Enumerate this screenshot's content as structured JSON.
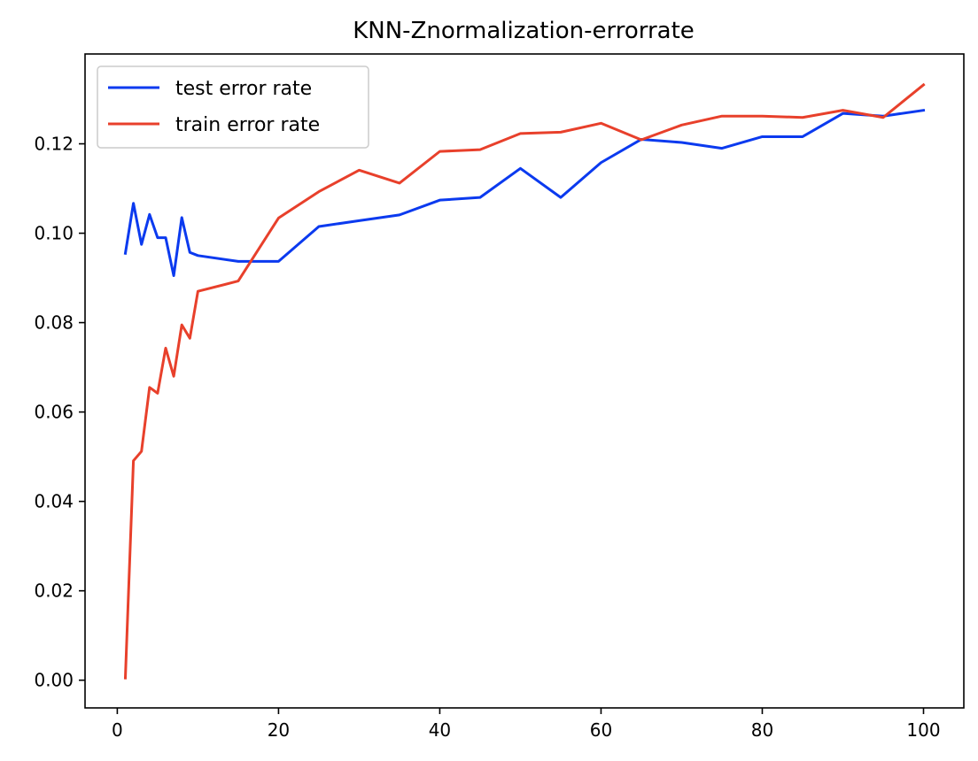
{
  "chart_data": {
    "type": "line",
    "title": "KNN-Znormalization-errorrate",
    "xlabel": "",
    "ylabel": "",
    "xlim": [
      -4,
      105
    ],
    "ylim": [
      -0.0062,
      0.1401
    ],
    "xticks": [
      0,
      20,
      40,
      60,
      80,
      100
    ],
    "xtick_labels": [
      "0",
      "20",
      "40",
      "60",
      "80",
      "100"
    ],
    "yticks": [
      0.0,
      0.02,
      0.04,
      0.06,
      0.08,
      0.1,
      0.12
    ],
    "ytick_labels": [
      "0.00",
      "0.02",
      "0.04",
      "0.06",
      "0.08",
      "0.10",
      "0.12"
    ],
    "grid": false,
    "legend_position": "top-left",
    "series": [
      {
        "name": "test error rate",
        "color": "#0b3aef",
        "x": [
          1,
          2,
          3,
          4,
          5,
          6,
          7,
          8,
          9,
          10,
          15,
          20,
          25,
          30,
          35,
          40,
          45,
          50,
          55,
          60,
          65,
          70,
          75,
          80,
          85,
          90,
          95,
          100
        ],
        "y": [
          0.0955,
          0.1067,
          0.0975,
          0.1042,
          0.099,
          0.099,
          0.0905,
          0.1035,
          0.0957,
          0.095,
          0.0937,
          0.0937,
          0.1015,
          0.1028,
          0.1041,
          0.1074,
          0.108,
          0.1145,
          0.108,
          0.1158,
          0.121,
          0.1203,
          0.119,
          0.1216,
          0.1216,
          0.1268,
          0.1262,
          0.1275
        ]
      },
      {
        "name": "train error rate",
        "color": "#e8402b",
        "x": [
          1,
          2,
          3,
          4,
          5,
          6,
          7,
          8,
          9,
          10,
          15,
          20,
          25,
          30,
          35,
          40,
          45,
          50,
          55,
          60,
          65,
          70,
          75,
          80,
          85,
          90,
          95,
          100
        ],
        "y": [
          0.0005,
          0.0491,
          0.0512,
          0.0655,
          0.0642,
          0.0743,
          0.068,
          0.0795,
          0.0765,
          0.087,
          0.0893,
          0.1034,
          0.1093,
          0.1141,
          0.1112,
          0.1183,
          0.1187,
          0.1223,
          0.1226,
          0.1246,
          0.1209,
          0.1242,
          0.1262,
          0.1262,
          0.1259,
          0.1275,
          0.1259,
          0.1332
        ]
      }
    ]
  }
}
